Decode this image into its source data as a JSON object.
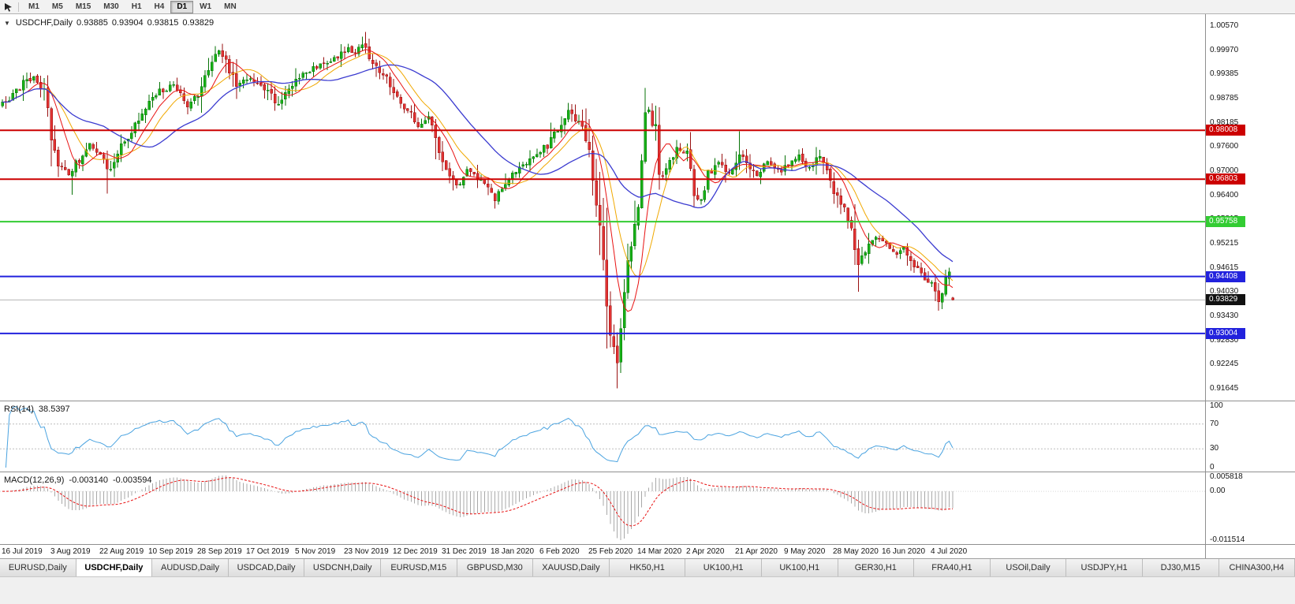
{
  "toolbar": {
    "periods": [
      "M1",
      "M5",
      "M15",
      "M30",
      "H1",
      "H4",
      "D1",
      "W1",
      "MN"
    ],
    "active": "D1"
  },
  "chart": {
    "symbol_header": {
      "collapse_icon": "▼",
      "title": "USDCHF,Daily",
      "open": "0.93885",
      "high": "0.93904",
      "low": "0.93815",
      "close": "0.93829"
    },
    "price_axis_labels": [
      "1.00570",
      "0.99970",
      "0.99385",
      "0.98785",
      "0.98185",
      "0.97600",
      "0.97000",
      "0.96400",
      "0.95815",
      "0.95215",
      "0.94615",
      "0.94030",
      "0.93430",
      "0.92830",
      "0.92245",
      "0.91645"
    ],
    "price_range": {
      "top": 1.0087,
      "bottom": 0.9135
    },
    "levels": [
      {
        "value": 0.98008,
        "label": "0.98008",
        "color": "#cc0000",
        "width": 2
      },
      {
        "value": 0.96803,
        "label": "0.96803",
        "color": "#cc0000",
        "width": 2
      },
      {
        "value": 0.95758,
        "label": "0.95758",
        "color": "#33cc33",
        "width": 2
      },
      {
        "value": 0.94408,
        "label": "0.94408",
        "color": "#2222dd",
        "width": 2
      },
      {
        "value": 0.93004,
        "label": "0.93004",
        "color": "#2222dd",
        "width": 2
      }
    ],
    "current_price": {
      "value": 0.93829,
      "label": "0.93829",
      "badge_color": "#111111",
      "line_color": "#b4b4b4"
    },
    "colors": {
      "up": "#17b017",
      "up_border": "#077307",
      "down": "#e03232",
      "down_border": "#991111",
      "ma_fast": "#e81212",
      "ma_mid": "#f0a800",
      "ma_slow": "#3b3bd0",
      "rsi": "#4aa3e0",
      "macd_hist": "#a8a8a8",
      "macd_signal": "#e81212",
      "rsi_level": "#bdbdbd"
    },
    "ma_periods": {
      "fast": 8,
      "mid": 13,
      "slow": 30
    },
    "total_candles": 273,
    "candle_spacing": 4.43,
    "candles_per_label": 14,
    "dates": [
      "16 Jul 2019",
      "3 Aug 2019",
      "22 Aug 2019",
      "10 Sep 2019",
      "28 Sep 2019",
      "17 Oct 2019",
      "5 Nov 2019",
      "23 Nov 2019",
      "12 Dec 2019",
      "31 Dec 2019",
      "18 Jan 2020",
      "6 Feb 2020",
      "25 Feb 2020",
      "14 Mar 2020",
      "2 Apr 2020",
      "21 Apr 2020",
      "9 May 2020",
      "28 May 2020",
      "16 Jun 2020",
      "4 Jul 2020"
    ],
    "waypoints": [
      [
        0,
        0.9868
      ],
      [
        3,
        0.9885
      ],
      [
        6,
        0.9922
      ],
      [
        9,
        0.993
      ],
      [
        12,
        0.9895
      ],
      [
        14,
        0.979
      ],
      [
        16,
        0.9715
      ],
      [
        19,
        0.969
      ],
      [
        22,
        0.973
      ],
      [
        25,
        0.9765
      ],
      [
        28,
        0.974
      ],
      [
        30,
        0.97
      ],
      [
        33,
        0.9745
      ],
      [
        37,
        0.98
      ],
      [
        41,
        0.9855
      ],
      [
        45,
        0.9895
      ],
      [
        49,
        0.9915
      ],
      [
        53,
        0.986
      ],
      [
        56,
        0.989
      ],
      [
        59,
        0.996
      ],
      [
        61,
        0.9995
      ],
      [
        63,
        0.9985
      ],
      [
        66,
        0.9935
      ],
      [
        67,
        0.9905
      ],
      [
        70,
        0.9925
      ],
      [
        73,
        0.992
      ],
      [
        76,
        0.99
      ],
      [
        78,
        0.9862
      ],
      [
        81,
        0.989
      ],
      [
        84,
        0.992
      ],
      [
        87,
        0.9945
      ],
      [
        90,
        0.996
      ],
      [
        93,
        0.997
      ],
      [
        96,
        0.9985
      ],
      [
        99,
        1.0005
      ],
      [
        101,
        0.999
      ],
      [
        103,
        1.001
      ],
      [
        105,
        0.9985
      ],
      [
        107,
        0.996
      ],
      [
        110,
        0.993
      ],
      [
        113,
        0.9875
      ],
      [
        116,
        0.985
      ],
      [
        119,
        0.9805
      ],
      [
        122,
        0.9835
      ],
      [
        124,
        0.979
      ],
      [
        126,
        0.972
      ],
      [
        128,
        0.9685
      ],
      [
        130,
        0.9665
      ],
      [
        133,
        0.97
      ],
      [
        136,
        0.9685
      ],
      [
        139,
        0.9665
      ],
      [
        141,
        0.963
      ],
      [
        144,
        0.9665
      ],
      [
        147,
        0.97
      ],
      [
        150,
        0.972
      ],
      [
        153,
        0.974
      ],
      [
        156,
        0.9765
      ],
      [
        159,
        0.9805
      ],
      [
        162,
        0.9845
      ],
      [
        164,
        0.983
      ],
      [
        166,
        0.98
      ],
      [
        168,
        0.976
      ],
      [
        170,
        0.964
      ],
      [
        172,
        0.948
      ],
      [
        174,
        0.929
      ],
      [
        176,
        0.924
      ],
      [
        177,
        0.933
      ],
      [
        179,
        0.948
      ],
      [
        181,
        0.956
      ],
      [
        183,
        0.972
      ],
      [
        184,
        0.983
      ],
      [
        185,
        0.9855
      ],
      [
        187,
        0.979
      ],
      [
        188,
        0.968
      ],
      [
        190,
        0.9715
      ],
      [
        193,
        0.9755
      ],
      [
        196,
        0.974
      ],
      [
        198,
        0.965
      ],
      [
        200,
        0.9625
      ],
      [
        202,
        0.969
      ],
      [
        205,
        0.972
      ],
      [
        208,
        0.97
      ],
      [
        211,
        0.9745
      ],
      [
        213,
        0.972
      ],
      [
        216,
        0.969
      ],
      [
        219,
        0.972
      ],
      [
        222,
        0.97
      ],
      [
        225,
        0.9715
      ],
      [
        228,
        0.9735
      ],
      [
        231,
        0.971
      ],
      [
        234,
        0.974
      ],
      [
        237,
        0.967
      ],
      [
        240,
        0.9625
      ],
      [
        243,
        0.956
      ],
      [
        245,
        0.9475
      ],
      [
        247,
        0.95
      ],
      [
        250,
        0.954
      ],
      [
        253,
        0.952
      ],
      [
        256,
        0.949
      ],
      [
        258,
        0.9515
      ],
      [
        260,
        0.948
      ],
      [
        262,
        0.9455
      ],
      [
        264,
        0.944
      ],
      [
        266,
        0.942
      ],
      [
        268,
        0.9385
      ],
      [
        269,
        0.94
      ],
      [
        270,
        0.943
      ],
      [
        271,
        0.944
      ],
      [
        272,
        0.9383
      ]
    ],
    "spikes": [
      {
        "i": 20,
        "low": 0.9642
      },
      {
        "i": 30,
        "low": 0.9645
      },
      {
        "i": 61,
        "high": 1.0008
      },
      {
        "i": 103,
        "high": 1.0032
      },
      {
        "i": 141,
        "low": 0.9608
      },
      {
        "i": 176,
        "low": 0.9165
      },
      {
        "i": 184,
        "high": 0.9905
      },
      {
        "i": 211,
        "high": 0.9798
      },
      {
        "i": 245,
        "low": 0.9403
      },
      {
        "i": 271,
        "high": 0.9462
      }
    ]
  },
  "rsi": {
    "name": "RSI(14)",
    "value": "38.5397",
    "period": 14,
    "axis_labels": [
      "100",
      "70",
      "30",
      "0"
    ],
    "level_lines": [
      70,
      30
    ]
  },
  "macd": {
    "name": "MACD(12,26,9)",
    "value_main": "-0.003140",
    "value_signal": "-0.003594",
    "fast": 12,
    "slow": 26,
    "signal": 9,
    "axis_max": "0.005818",
    "axis_zero": "0.00",
    "axis_min": "-0.011514"
  },
  "tabbar": {
    "tabs": [
      {
        "label": "EURUSD,Daily",
        "active": false
      },
      {
        "label": "USDCHF,Daily",
        "active": true
      },
      {
        "label": "AUDUSD,Daily",
        "active": false
      },
      {
        "label": "USDCAD,Daily",
        "active": false
      },
      {
        "label": "USDCNH,Daily",
        "active": false
      },
      {
        "label": "EURUSD,M15",
        "active": false
      },
      {
        "label": "GBPUSD,M30",
        "active": false
      },
      {
        "label": "XAUUSD,Daily",
        "active": false
      },
      {
        "label": "HK50,H1",
        "active": false
      },
      {
        "label": "UK100,H1",
        "active": false
      },
      {
        "label": "UK100,H1",
        "active": false
      },
      {
        "label": "GER30,H1",
        "active": false
      },
      {
        "label": "FRA40,H1",
        "active": false
      },
      {
        "label": "USOil,Daily",
        "active": false
      },
      {
        "label": "USDJPY,H1",
        "active": false
      },
      {
        "label": "DJ30,M15",
        "active": false
      },
      {
        "label": "CHINA300,H4",
        "active": false
      }
    ]
  },
  "chart_data": {
    "type": "candlestick",
    "symbol": "USDCHF",
    "timeframe": "Daily",
    "visible_price_range": [
      0.9135,
      1.0087
    ],
    "last_ohlc": {
      "open": 0.93885,
      "high": 0.93904,
      "low": 0.93815,
      "close": 0.93829
    },
    "horizontal_levels": [
      0.98008,
      0.96803,
      0.95758,
      0.94408,
      0.93004
    ],
    "indicators": [
      {
        "name": "RSI(14)",
        "last_value": 38.5397
      },
      {
        "name": "MACD(12,26,9)",
        "last_values": [
          -0.00314,
          -0.003594
        ]
      }
    ]
  }
}
